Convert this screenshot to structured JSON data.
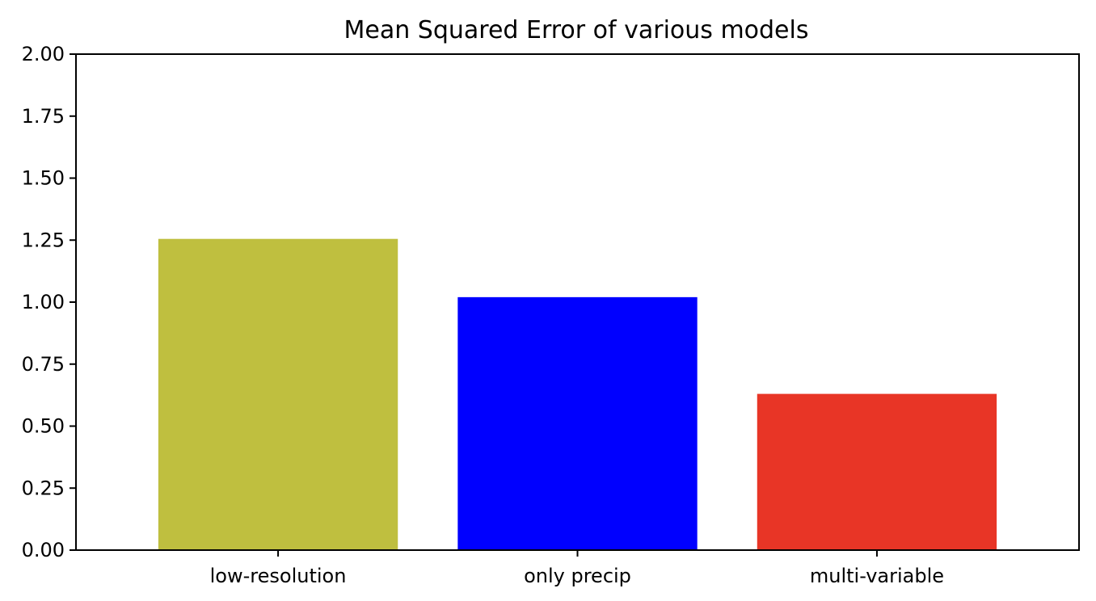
{
  "chart_data": {
    "type": "bar",
    "title": "Mean Squared Error of various models",
    "xlabel": "",
    "ylabel": "",
    "categories": [
      "low-resolution",
      "only precip",
      "multi-variable"
    ],
    "values": [
      1.255,
      1.02,
      0.63
    ],
    "colors": [
      "#bfbf3f",
      "#0000ff",
      "#e83526"
    ],
    "ylim": [
      0,
      2.0
    ],
    "yticks": [
      "0.00",
      "0.25",
      "0.50",
      "0.75",
      "1.00",
      "1.25",
      "1.50",
      "1.75",
      "2.00"
    ],
    "ytick_values": [
      0,
      0.25,
      0.5,
      0.75,
      1.0,
      1.25,
      1.5,
      1.75,
      2.0
    ],
    "grid": false,
    "legend": "none"
  }
}
